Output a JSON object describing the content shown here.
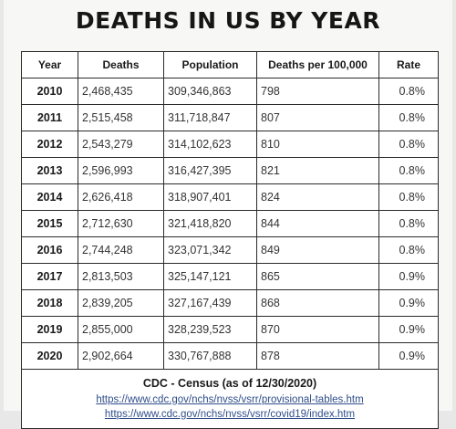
{
  "title": "DEATHS IN US BY YEAR",
  "table": {
    "headers": [
      "Year",
      "Deaths",
      "Population",
      "Deaths per 100,000",
      "Rate"
    ],
    "rows": [
      [
        "2010",
        "2,468,435",
        "309,346,863",
        "798",
        "0.8%"
      ],
      [
        "2011",
        "2,515,458",
        "311,718,847",
        "807",
        "0.8%"
      ],
      [
        "2012",
        "2,543,279",
        "314,102,623",
        "810",
        "0.8%"
      ],
      [
        "2013",
        "2,596,993",
        "316,427,395",
        "821",
        "0.8%"
      ],
      [
        "2014",
        "2,626,418",
        "318,907,401",
        "824",
        "0.8%"
      ],
      [
        "2015",
        "2,712,630",
        "321,418,820",
        "844",
        "0.8%"
      ],
      [
        "2016",
        "2,744,248",
        "323,071,342",
        "849",
        "0.8%"
      ],
      [
        "2017",
        "2,813,503",
        "325,147,121",
        "865",
        "0.9%"
      ],
      [
        "2018",
        "2,839,205",
        "327,167,439",
        "868",
        "0.9%"
      ],
      [
        "2019",
        "2,855,000",
        "328,239,523",
        "870",
        "0.9%"
      ],
      [
        "2020",
        "2,902,664",
        "330,767,888",
        "878",
        "0.9%"
      ]
    ]
  },
  "footer": {
    "source": "CDC - Census (as of 12/30/2020)",
    "links": [
      "https://www.cdc.gov/nchs/nvss/vsrr/provisional-tables.htm",
      "https://www.cdc.gov/nchs/nvss/vsrr/covid19/index.htm"
    ]
  }
}
